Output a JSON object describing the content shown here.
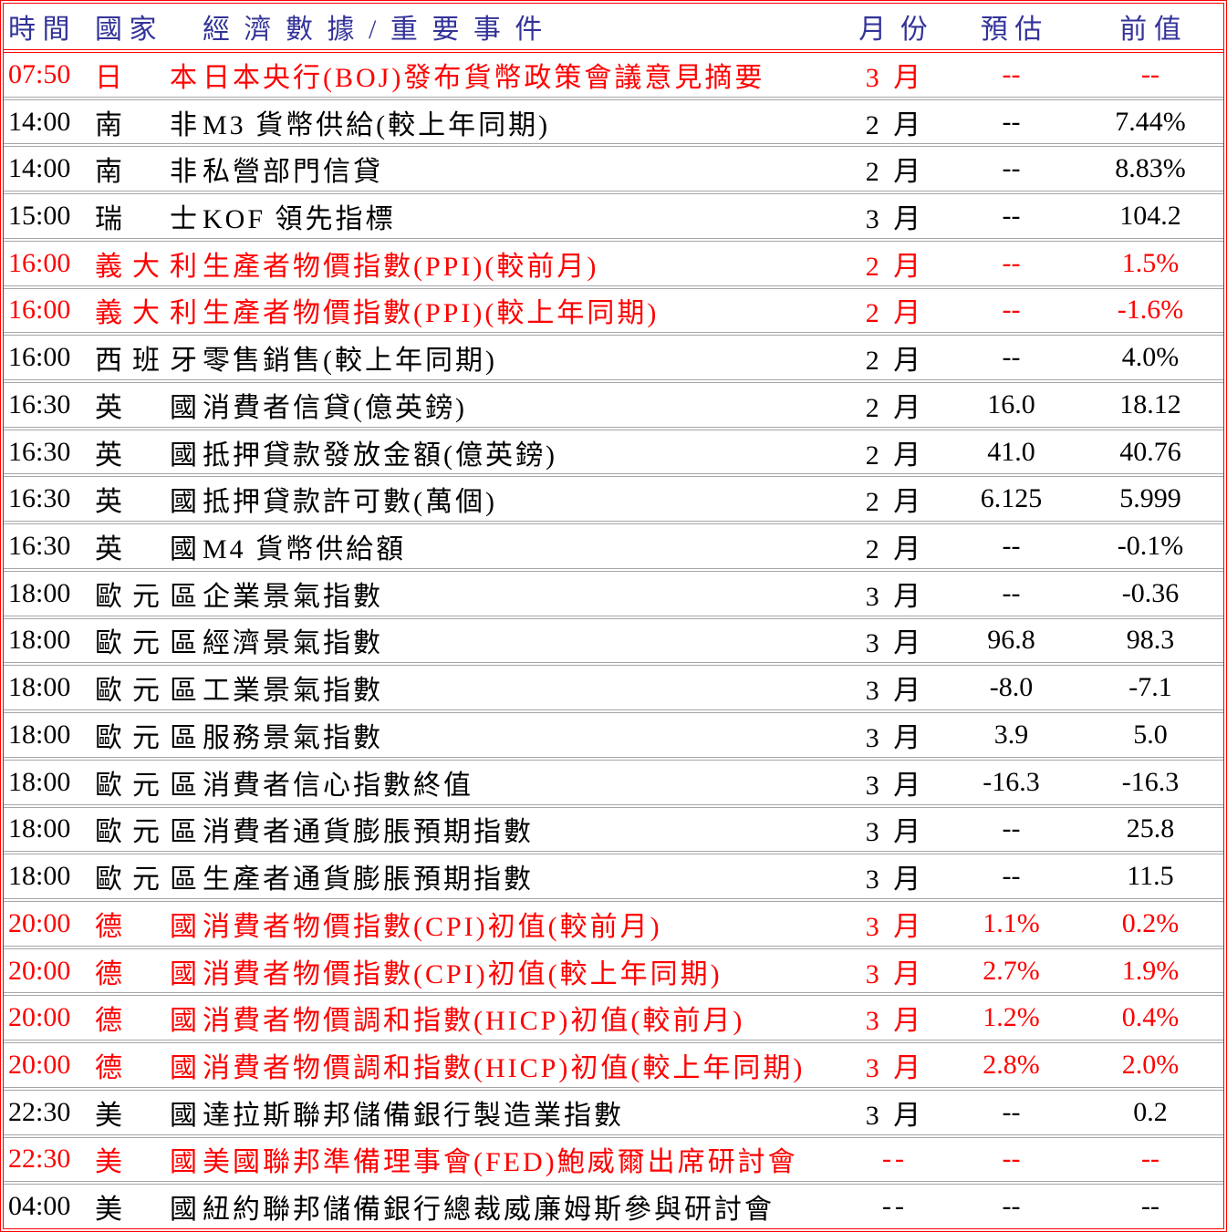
{
  "colors": {
    "frame_border": "#ff0000",
    "row_separator": "#a6a6a6",
    "highlight_text": "#ff0000",
    "normal_text": "#000000",
    "header_text": "#333399"
  },
  "table": {
    "columns": {
      "time": "時 間",
      "country": "國 家",
      "event": "經 濟 數 據 / 重 要 事 件",
      "month": "月 份",
      "forecast": "預 估",
      "previous": "前 值"
    },
    "rows": [
      {
        "time": "07:50",
        "country": "日本",
        "event": "日本央行(BOJ)發布貨幣政策會議意見摘要",
        "month": "3 月",
        "forecast": "--",
        "previous": "--",
        "highlight": true
      },
      {
        "time": "14:00",
        "country": "南非",
        "event": "M3 貨幣供給(較上年同期)",
        "month": "2 月",
        "forecast": "--",
        "previous": "7.44%",
        "highlight": false
      },
      {
        "time": "14:00",
        "country": "南非",
        "event": "私營部門信貸",
        "month": "2 月",
        "forecast": "--",
        "previous": "8.83%",
        "highlight": false
      },
      {
        "time": "15:00",
        "country": "瑞士",
        "event": "KOF 領先指標",
        "month": "3 月",
        "forecast": "--",
        "previous": "104.2",
        "highlight": false
      },
      {
        "time": "16:00",
        "country": "義大利",
        "event": "生產者物價指數(PPI)(較前月)",
        "month": "2 月",
        "forecast": "--",
        "previous": "1.5%",
        "highlight": true
      },
      {
        "time": "16:00",
        "country": "義大利",
        "event": "生產者物價指數(PPI)(較上年同期)",
        "month": "2 月",
        "forecast": "--",
        "previous": "-1.6%",
        "highlight": true
      },
      {
        "time": "16:00",
        "country": "西班牙",
        "event": "零售銷售(較上年同期)",
        "month": "2 月",
        "forecast": "--",
        "previous": "4.0%",
        "highlight": false
      },
      {
        "time": "16:30",
        "country": "英國",
        "event": "消費者信貸(億英鎊)",
        "month": "2 月",
        "forecast": "16.0",
        "previous": "18.12",
        "highlight": false
      },
      {
        "time": "16:30",
        "country": "英國",
        "event": "抵押貸款發放金額(億英鎊)",
        "month": "2 月",
        "forecast": "41.0",
        "previous": "40.76",
        "highlight": false
      },
      {
        "time": "16:30",
        "country": "英國",
        "event": "抵押貸款許可數(萬個)",
        "month": "2 月",
        "forecast": "6.125",
        "previous": "5.999",
        "highlight": false
      },
      {
        "time": "16:30",
        "country": "英國",
        "event": "M4 貨幣供給額",
        "month": "2 月",
        "forecast": "--",
        "previous": "-0.1%",
        "highlight": false
      },
      {
        "time": "18:00",
        "country": "歐元區",
        "event": "企業景氣指數",
        "month": "3 月",
        "forecast": "--",
        "previous": "-0.36",
        "highlight": false
      },
      {
        "time": "18:00",
        "country": "歐元區",
        "event": "經濟景氣指數",
        "month": "3 月",
        "forecast": "96.8",
        "previous": "98.3",
        "highlight": false
      },
      {
        "time": "18:00",
        "country": "歐元區",
        "event": "工業景氣指數",
        "month": "3 月",
        "forecast": "-8.0",
        "previous": "-7.1",
        "highlight": false
      },
      {
        "time": "18:00",
        "country": "歐元區",
        "event": "服務景氣指數",
        "month": "3 月",
        "forecast": "3.9",
        "previous": "5.0",
        "highlight": false
      },
      {
        "time": "18:00",
        "country": "歐元區",
        "event": "消費者信心指數終值",
        "month": "3 月",
        "forecast": "-16.3",
        "previous": "-16.3",
        "highlight": false
      },
      {
        "time": "18:00",
        "country": "歐元區",
        "event": "消費者通貨膨脹預期指數",
        "month": "3 月",
        "forecast": "--",
        "previous": "25.8",
        "highlight": false
      },
      {
        "time": "18:00",
        "country": "歐元區",
        "event": "生產者通貨膨脹預期指數",
        "month": "3 月",
        "forecast": "--",
        "previous": "11.5",
        "highlight": false
      },
      {
        "time": "20:00",
        "country": "德國",
        "event": "消費者物價指數(CPI)初值(較前月)",
        "month": "3 月",
        "forecast": "1.1%",
        "previous": "0.2%",
        "highlight": true
      },
      {
        "time": "20:00",
        "country": "德國",
        "event": "消費者物價指數(CPI)初值(較上年同期)",
        "month": "3 月",
        "forecast": "2.7%",
        "previous": "1.9%",
        "highlight": true
      },
      {
        "time": "20:00",
        "country": "德國",
        "event": "消費者物價調和指數(HICP)初值(較前月)",
        "month": "3 月",
        "forecast": "1.2%",
        "previous": "0.4%",
        "highlight": true
      },
      {
        "time": "20:00",
        "country": "德國",
        "event": "消費者物價調和指數(HICP)初值(較上年同期)",
        "month": "3 月",
        "forecast": "2.8%",
        "previous": "2.0%",
        "highlight": true
      },
      {
        "time": "22:30",
        "country": "美國",
        "event": "達拉斯聯邦儲備銀行製造業指數",
        "month": "3 月",
        "forecast": "--",
        "previous": "0.2",
        "highlight": false
      },
      {
        "time": "22:30",
        "country": "美國",
        "event": "美國聯邦準備理事會(FED)鮑威爾出席研討會",
        "month": "--",
        "forecast": "--",
        "previous": "--",
        "highlight": true
      },
      {
        "time": "04:00",
        "country": "美國",
        "event": "紐約聯邦儲備銀行總裁威廉姆斯參與研討會",
        "month": "--",
        "forecast": "--",
        "previous": "--",
        "highlight": false
      }
    ]
  }
}
